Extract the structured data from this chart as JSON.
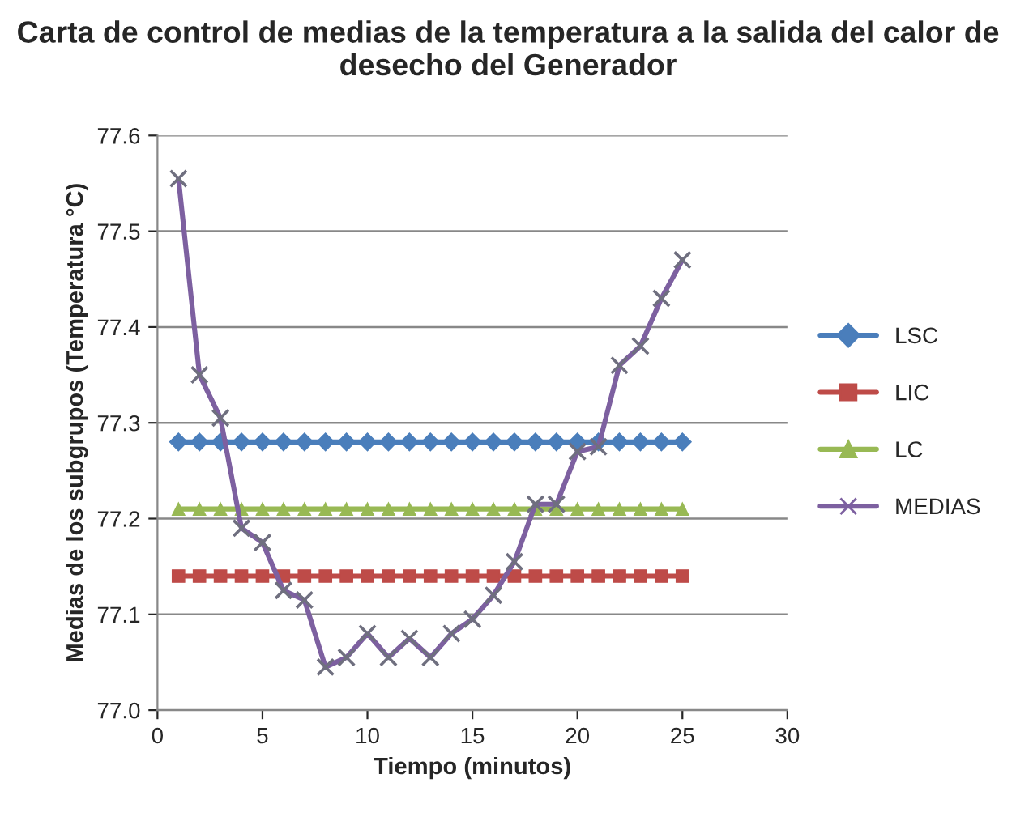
{
  "chart_data": {
    "type": "line",
    "title": "Carta de control de medias de la temperatura a la salida del calor de desecho del Generador",
    "xlabel": "Tiempo (minutos)",
    "ylabel": "Medias de los subgrupos (Temperatura °C)",
    "x": [
      1,
      2,
      3,
      4,
      5,
      6,
      7,
      8,
      9,
      10,
      11,
      12,
      13,
      14,
      15,
      16,
      17,
      18,
      19,
      20,
      21,
      22,
      23,
      24,
      25
    ],
    "series": [
      {
        "name": "LSC",
        "color": "#4a7ebb",
        "marker": "diamond",
        "values": [
          77.28,
          77.28,
          77.28,
          77.28,
          77.28,
          77.28,
          77.28,
          77.28,
          77.28,
          77.28,
          77.28,
          77.28,
          77.28,
          77.28,
          77.28,
          77.28,
          77.28,
          77.28,
          77.28,
          77.28,
          77.28,
          77.28,
          77.28,
          77.28,
          77.28
        ]
      },
      {
        "name": "LIC",
        "color": "#be4b48",
        "marker": "square",
        "values": [
          77.14,
          77.14,
          77.14,
          77.14,
          77.14,
          77.14,
          77.14,
          77.14,
          77.14,
          77.14,
          77.14,
          77.14,
          77.14,
          77.14,
          77.14,
          77.14,
          77.14,
          77.14,
          77.14,
          77.14,
          77.14,
          77.14,
          77.14,
          77.14,
          77.14
        ]
      },
      {
        "name": "LC",
        "color": "#98b954",
        "marker": "triangle",
        "values": [
          77.21,
          77.21,
          77.21,
          77.21,
          77.21,
          77.21,
          77.21,
          77.21,
          77.21,
          77.21,
          77.21,
          77.21,
          77.21,
          77.21,
          77.21,
          77.21,
          77.21,
          77.21,
          77.21,
          77.21,
          77.21,
          77.21,
          77.21,
          77.21,
          77.21
        ]
      },
      {
        "name": "MEDIAS",
        "color": "#7d60a0",
        "marker": "cross",
        "values": [
          77.555,
          77.35,
          77.305,
          77.19,
          77.175,
          77.125,
          77.115,
          77.045,
          77.055,
          77.08,
          77.055,
          77.075,
          77.055,
          77.08,
          77.095,
          77.12,
          77.155,
          77.215,
          77.215,
          77.27,
          77.275,
          77.36,
          77.38,
          77.43,
          77.47
        ]
      }
    ],
    "xlim": [
      0,
      30
    ],
    "xticks": [
      0,
      5,
      10,
      15,
      20,
      25,
      30
    ],
    "ylim": [
      77.0,
      77.6
    ],
    "yticks": [
      {
        "value": 77.0,
        "label": "77.0"
      },
      {
        "value": 77.1,
        "label": "77.1"
      },
      {
        "value": 77.2,
        "label": "77.2"
      },
      {
        "value": 77.3,
        "label": "77.3"
      },
      {
        "value": 77.4,
        "label": "77.4"
      },
      {
        "value": 77.5,
        "label": "77.5"
      },
      {
        "value": 77.6,
        "label": "77.6"
      }
    ],
    "grid": "y",
    "legend": "right",
    "line_style": "solid"
  }
}
